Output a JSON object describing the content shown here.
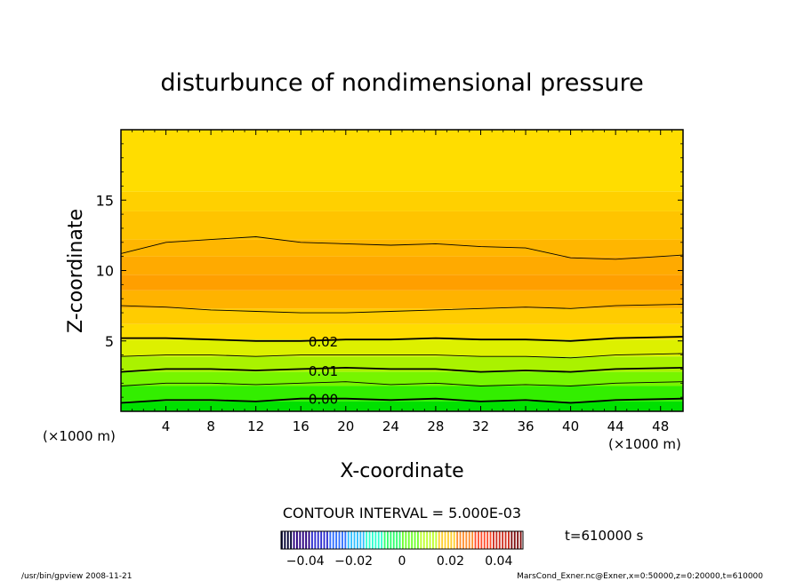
{
  "chart_data": {
    "type": "heatmap",
    "title": "disturbunce of nondimensional pressure",
    "xlabel": "X-coordinate",
    "ylabel": "Z-coordinate",
    "x_scale_note": "(×1000 m)",
    "y_scale_note": "(×1000 m)",
    "xlim": [
      0,
      50
    ],
    "ylim": [
      0,
      20
    ],
    "x_ticks": [
      4,
      8,
      12,
      16,
      20,
      24,
      28,
      32,
      36,
      40,
      44,
      48
    ],
    "y_ticks": [
      5,
      10,
      15
    ],
    "contour_interval_label": "CONTOUR INTERVAL = 5.000E-03",
    "contour_labels": [
      {
        "text": "0.02",
        "x": 18,
        "z": 5.0
      },
      {
        "text": "0.01",
        "x": 18,
        "z": 2.9
      },
      {
        "text": "0.00",
        "x": 18,
        "z": 0.9
      }
    ],
    "contours": [
      {
        "level": 0.0,
        "bold": true,
        "z": [
          0.6,
          0.8,
          0.8,
          0.7,
          0.9,
          0.9,
          0.8,
          0.9,
          0.7,
          0.8,
          0.6,
          0.8,
          0.9
        ]
      },
      {
        "level": 0.005,
        "bold": false,
        "z": [
          1.8,
          2.0,
          2.0,
          1.9,
          2.0,
          2.1,
          1.9,
          2.0,
          1.8,
          1.9,
          1.8,
          2.0,
          2.1
        ]
      },
      {
        "level": 0.01,
        "bold": true,
        "z": [
          2.8,
          3.0,
          3.0,
          2.9,
          3.0,
          3.1,
          3.0,
          3.0,
          2.8,
          2.9,
          2.8,
          3.0,
          3.1
        ]
      },
      {
        "level": 0.015,
        "bold": false,
        "z": [
          3.9,
          4.0,
          4.0,
          3.9,
          4.0,
          4.0,
          4.0,
          4.0,
          3.9,
          3.9,
          3.8,
          4.0,
          4.1
        ]
      },
      {
        "level": 0.02,
        "bold": true,
        "z": [
          5.2,
          5.2,
          5.1,
          5.0,
          5.0,
          5.1,
          5.1,
          5.2,
          5.1,
          5.1,
          5.0,
          5.2,
          5.3
        ]
      },
      {
        "level": 0.025,
        "bold": false,
        "z": [
          7.5,
          7.4,
          7.2,
          7.1,
          7.0,
          7.0,
          7.1,
          7.2,
          7.3,
          7.4,
          7.3,
          7.5,
          7.6
        ]
      },
      {
        "level": 0.025,
        "bold": false,
        "z": [
          11.2,
          12.0,
          12.2,
          12.4,
          12.0,
          11.9,
          11.8,
          11.9,
          11.7,
          11.6,
          10.9,
          10.8,
          11.1
        ]
      }
    ],
    "contour_x": [
      0,
      4,
      8,
      12,
      16,
      20,
      24,
      28,
      32,
      36,
      40,
      44,
      50
    ],
    "fill_bands": [
      {
        "z_low": 0.0,
        "z_high": 0.7,
        "color": "#00e000"
      },
      {
        "z_low": 0.7,
        "z_high": 1.8,
        "color": "#33ee00"
      },
      {
        "z_low": 1.8,
        "z_high": 2.8,
        "color": "#77f500"
      },
      {
        "z_low": 2.8,
        "z_high": 3.9,
        "color": "#aaf200"
      },
      {
        "z_low": 3.9,
        "z_high": 5.1,
        "color": "#ddf000"
      },
      {
        "z_low": 5.1,
        "z_high": 6.2,
        "color": "#ffdc00"
      },
      {
        "z_low": 6.2,
        "z_high": 7.3,
        "color": "#ffcc00"
      },
      {
        "z_low": 7.3,
        "z_high": 8.6,
        "color": "#ffb300"
      },
      {
        "z_low": 8.6,
        "z_high": 9.7,
        "color": "#ff9f00"
      },
      {
        "z_low": 9.7,
        "z_high": 11.0,
        "color": "#ffaa00"
      },
      {
        "z_low": 11.0,
        "z_high": 12.2,
        "color": "#ffb600"
      },
      {
        "z_low": 12.2,
        "z_high": 14.2,
        "color": "#ffc400"
      },
      {
        "z_low": 14.2,
        "z_high": 15.6,
        "color": "#ffd000"
      },
      {
        "z_low": 15.6,
        "z_high": 20.0,
        "color": "#ffdd00"
      }
    ],
    "colorbar": {
      "ticks": [
        "−0.04",
        "−0.02",
        "0",
        "0.02",
        "0.04"
      ],
      "tick_values": [
        -0.04,
        -0.02,
        0,
        0.02,
        0.04
      ],
      "range": [
        -0.05,
        0.05
      ],
      "colors": [
        "#000030",
        "#2a0080",
        "#3030d0",
        "#3070ff",
        "#30c0ff",
        "#30ffd0",
        "#30ff70",
        "#70ff30",
        "#c0ff30",
        "#ffd030",
        "#ff9030",
        "#ff5030",
        "#d03020",
        "#801010"
      ]
    },
    "time_label": "t=610000 s",
    "footer_left": "/usr/bin/gpview   2008-11-21",
    "footer_right": "MarsCond_Exner.nc@Exner,x=0:50000,z=0:20000,t=610000"
  }
}
